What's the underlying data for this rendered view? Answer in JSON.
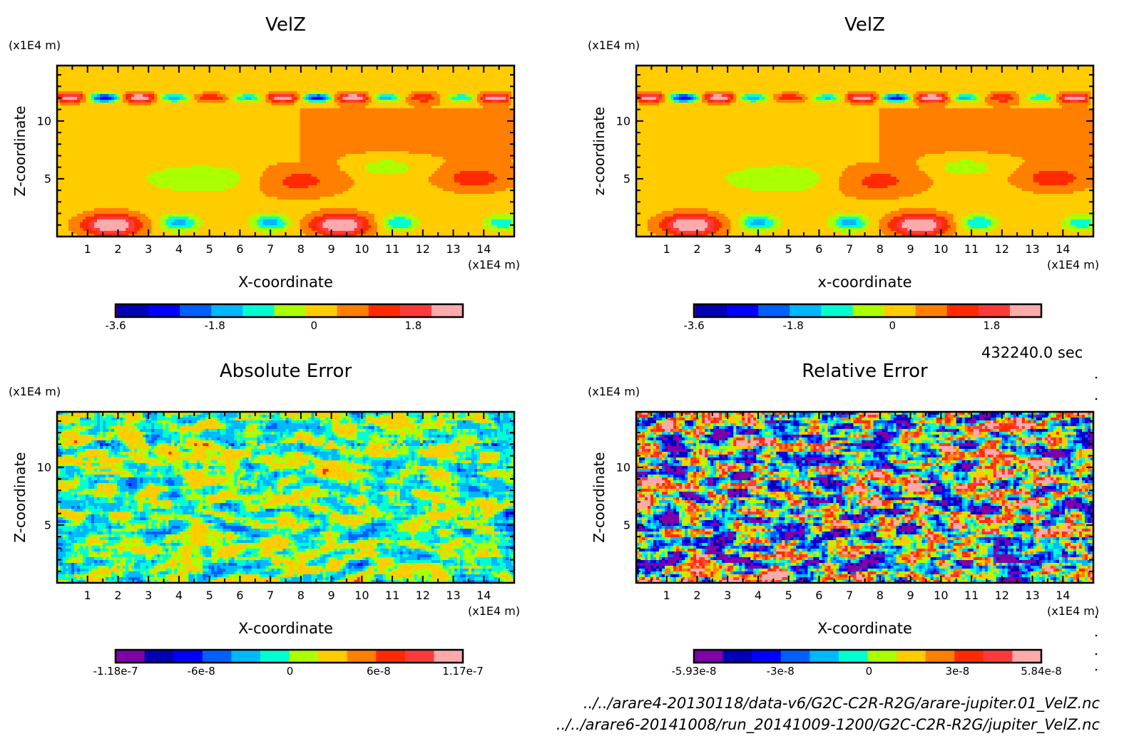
{
  "chart_data": [
    {
      "type": "heatmap",
      "panel": "top-left",
      "title": "VelZ",
      "xlabel": "X-coordinate",
      "ylabel": "Z-coordinate",
      "x_unit": "(x1E4 m)",
      "y_unit": "(x1E4 m)",
      "xlim": [
        0,
        15
      ],
      "ylim": [
        0,
        14.8
      ],
      "xticks": [
        "1",
        "2",
        "3",
        "4",
        "5",
        "6",
        "7",
        "8",
        "9",
        "10",
        "11",
        "12",
        "13",
        "14"
      ],
      "yticks": [
        "5",
        "10"
      ],
      "colorbar": {
        "levels": 11,
        "colors": [
          "#0000b4",
          "#0000ff",
          "#0060ff",
          "#00b8ff",
          "#00ffd0",
          "#aaff00",
          "#ffcc00",
          "#ff7f00",
          "#ff2a00",
          "#ff3a3a",
          "#ffaaaa"
        ],
        "ticklabels": [
          "-3.6",
          "-1.8",
          "0",
          "1.8"
        ],
        "range": [
          -3.6,
          2.7
        ]
      },
      "features": [
        {
          "kind": "band",
          "z": 12,
          "desc": "alternating blobs"
        },
        {
          "kind": "blob",
          "x": 1.8,
          "z": 1.0,
          "value": 2.7
        },
        {
          "kind": "blob",
          "x": 9.3,
          "z": 1.0,
          "value": 2.7
        },
        {
          "kind": "region",
          "x": 5.0,
          "z": 5.5,
          "value": -0.6
        },
        {
          "kind": "region",
          "x": 8.0,
          "z": 5.0,
          "value": 0.8
        },
        {
          "kind": "region",
          "x": 11.0,
          "z": 6.0,
          "value": -0.6
        },
        {
          "kind": "region",
          "x": 14.0,
          "z": 5.0,
          "value": 0.9
        }
      ]
    },
    {
      "type": "heatmap",
      "panel": "top-right",
      "title": "VelZ",
      "xlabel": "x-coordinate",
      "ylabel": "z-coordinate",
      "x_unit": "(x1E4 m)",
      "y_unit": "(x1E4 m)",
      "xlim": [
        0,
        15
      ],
      "ylim": [
        0,
        14.8
      ],
      "xticks": [
        "1",
        "2",
        "3",
        "4",
        "5",
        "6",
        "7",
        "8",
        "9",
        "10",
        "11",
        "12",
        "13",
        "14"
      ],
      "yticks": [
        "5",
        "10"
      ],
      "colorbar": {
        "levels": 11,
        "colors": [
          "#0000b4",
          "#0000ff",
          "#0060ff",
          "#00b8ff",
          "#00ffd0",
          "#aaff00",
          "#ffcc00",
          "#ff7f00",
          "#ff2a00",
          "#ff3a3a",
          "#ffaaaa"
        ],
        "ticklabels": [
          "-3.6",
          "-1.8",
          "0",
          "1.8"
        ],
        "range": [
          -3.6,
          2.7
        ]
      }
    },
    {
      "type": "heatmap",
      "panel": "bottom-left",
      "title": "Absolute Error",
      "xlabel": "X-coordinate",
      "ylabel": "Z-coordinate",
      "x_unit": "(x1E4 m)",
      "y_unit": "(x1E4 m)",
      "xlim": [
        0,
        15
      ],
      "ylim": [
        0,
        14.8
      ],
      "xticks": [
        "1",
        "2",
        "3",
        "4",
        "5",
        "6",
        "7",
        "8",
        "9",
        "10",
        "11",
        "12",
        "13",
        "14"
      ],
      "yticks": [
        "5",
        "10"
      ],
      "colorbar": {
        "levels": 12,
        "colors": [
          "#8000a8",
          "#0000b4",
          "#0000ff",
          "#0060ff",
          "#00b8ff",
          "#00ffd0",
          "#aaff00",
          "#ffcc00",
          "#ff7f00",
          "#ff2a00",
          "#ff3a3a",
          "#ffaaaa"
        ],
        "ticklabels": [
          "-1.18e-7",
          "-6e-8",
          "0",
          "6e-8",
          "1.17e-7"
        ],
        "range": [
          -1.18e-07,
          1.17e-07
        ]
      }
    },
    {
      "type": "heatmap",
      "panel": "bottom-right",
      "title": "Relative Error",
      "xlabel": "X-coordinate",
      "ylabel": "Z-coordinate",
      "x_unit": "(x1E4 m)",
      "y_unit": "(x1E4 m)",
      "xlim": [
        0,
        15
      ],
      "ylim": [
        0,
        14.8
      ],
      "xticks": [
        "1",
        "2",
        "3",
        "4",
        "5",
        "6",
        "7",
        "8",
        "9",
        "10",
        "11",
        "12",
        "13",
        "14"
      ],
      "yticks": [
        "5",
        "10"
      ],
      "colorbar": {
        "levels": 12,
        "colors": [
          "#8000a8",
          "#0000b4",
          "#0000ff",
          "#0060ff",
          "#00b8ff",
          "#00ffd0",
          "#aaff00",
          "#ffcc00",
          "#ff7f00",
          "#ff2a00",
          "#ff3a3a",
          "#ffaaaa"
        ],
        "ticklabels": [
          "-5.93e-8",
          "-3e-8",
          "0",
          "3e-8",
          "5.84e-8"
        ],
        "range": [
          -5.93e-08,
          5.84e-08
        ]
      }
    }
  ],
  "time_label": "432240.0 sec",
  "files": [
    "../../arare4-20130118/data-v6/G2C-C2R-R2G/arare-jupiter.01_VelZ.nc",
    "../../arare6-20141008/run_20141009-1200/G2C-C2R-R2G/jupiter_VelZ.nc"
  ]
}
